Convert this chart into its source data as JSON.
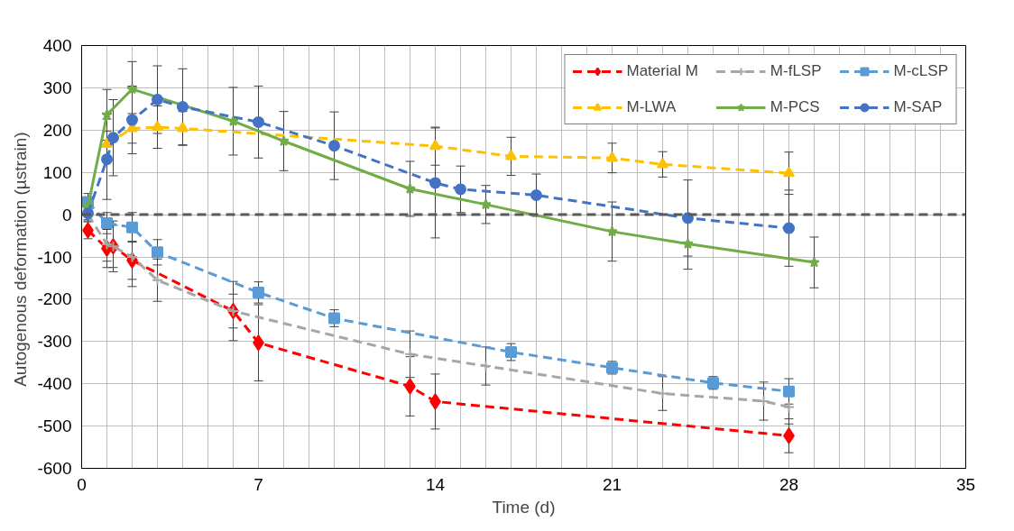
{
  "chart_data": {
    "type": "line",
    "xlabel": "Time (d)",
    "ylabel": "Autogenous deformation  (µstrain)",
    "xlim": [
      0,
      35
    ],
    "ylim": [
      -600,
      400
    ],
    "xticks": [
      0,
      {
        "value": 1,
        "label": null
      },
      {
        "value": 2,
        "label": null
      },
      {
        "value": 3,
        "label": null
      },
      {
        "value": 4,
        "label": null
      },
      {
        "value": 5,
        "label": null
      },
      {
        "value": 6,
        "label": null
      },
      7,
      {
        "value": 8,
        "label": null
      },
      {
        "value": 9,
        "label": null
      },
      {
        "value": 10,
        "label": null
      },
      {
        "value": 11,
        "label": null
      },
      {
        "value": 12,
        "label": null
      },
      {
        "value": 13,
        "label": null
      },
      14,
      {
        "value": 15,
        "label": null
      },
      {
        "value": 16,
        "label": null
      },
      {
        "value": 17,
        "label": null
      },
      {
        "value": 18,
        "label": null
      },
      {
        "value": 19,
        "label": null
      },
      {
        "value": 20,
        "label": null
      },
      21,
      {
        "value": 22,
        "label": null
      },
      {
        "value": 23,
        "label": null
      },
      {
        "value": 24,
        "label": null
      },
      {
        "value": 25,
        "label": null
      },
      {
        "value": 26,
        "label": null
      },
      {
        "value": 27,
        "label": null
      },
      28,
      {
        "value": 29,
        "label": null
      },
      {
        "value": 30,
        "label": null
      },
      {
        "value": 31,
        "label": null
      },
      {
        "value": 32,
        "label": null
      },
      {
        "value": 33,
        "label": null
      },
      {
        "value": 34,
        "label": null
      },
      35
    ],
    "yticks": [
      -600,
      -500,
      -400,
      -300,
      -200,
      -100,
      0,
      100,
      200,
      300,
      400
    ],
    "grid": true,
    "legend": "top right",
    "ref_lines": [
      {
        "axis": "y",
        "value": 0,
        "color": "#595959",
        "line_style": "dashed"
      }
    ],
    "series": [
      {
        "name": "Material M",
        "color": "#ff0000",
        "marker": "diamond",
        "line_style": "dashed",
        "x": [
          0.25,
          1,
          1.25,
          2,
          6,
          7,
          13,
          14,
          28
        ],
        "values": [
          -37,
          -80,
          -75,
          -108,
          -228,
          -303,
          -406,
          -442,
          -523
        ],
        "errors": [
          20,
          45,
          60,
          45,
          40,
          90,
          70,
          65,
          40
        ]
      },
      {
        "name": "M-fLSP",
        "color": "#a6a6a6",
        "marker": "cross",
        "line_style": "dashed",
        "x": [
          0.25,
          1,
          1.25,
          2,
          3,
          6,
          13,
          16,
          23,
          27,
          28
        ],
        "values": [
          0,
          -70,
          -75,
          -100,
          -155,
          -228,
          -330,
          -358,
          -423,
          -441,
          -455
        ],
        "errors": [
          15,
          40,
          50,
          70,
          50,
          70,
          55,
          45,
          40,
          45,
          40
        ]
      },
      {
        "name": "M-cLSP",
        "color": "#5b9bd5",
        "marker": "square",
        "line_style": "dashed",
        "x": [
          0.25,
          1,
          2,
          3,
          7,
          10,
          17,
          21,
          25,
          28
        ],
        "values": [
          30,
          -20,
          -30,
          -89,
          -184,
          -245,
          -325,
          -362,
          -398,
          -418
        ],
        "errors": [
          20,
          25,
          35,
          30,
          25,
          20,
          20,
          15,
          15,
          30
        ]
      },
      {
        "name": "M-LWA",
        "color": "#ffc000",
        "marker": "triangle",
        "line_style": "dashed",
        "x": [
          1,
          2,
          3,
          4,
          14,
          17,
          21,
          23,
          28
        ],
        "values": [
          167,
          204,
          207,
          204,
          162,
          138,
          134,
          119,
          98
        ],
        "errors": [
          30,
          35,
          50,
          40,
          45,
          45,
          35,
          30,
          50
        ]
      },
      {
        "name": "M-PCS",
        "color": "#70ad47",
        "marker": "star",
        "line_style": "solid",
        "x": [
          0.25,
          1,
          2,
          6,
          8,
          13,
          16,
          21,
          24,
          29
        ],
        "values": [
          20,
          236,
          297,
          221,
          174,
          61,
          24,
          -40,
          -69,
          -113
        ],
        "errors": [
          20,
          60,
          65,
          80,
          70,
          65,
          45,
          70,
          60,
          60
        ]
      },
      {
        "name": "M-SAP",
        "color": "#4472c4",
        "marker": "circle",
        "line_style": "dashed",
        "x": [
          0.25,
          1,
          1.25,
          2,
          3,
          4,
          7,
          10,
          14,
          15,
          18,
          24,
          28
        ],
        "values": [
          3,
          131,
          182,
          224,
          272,
          255,
          219,
          163,
          75,
          60,
          46,
          -8,
          -32
        ],
        "errors": [
          15,
          95,
          90,
          80,
          80,
          90,
          85,
          80,
          130,
          55,
          50,
          90,
          90
        ]
      }
    ]
  }
}
